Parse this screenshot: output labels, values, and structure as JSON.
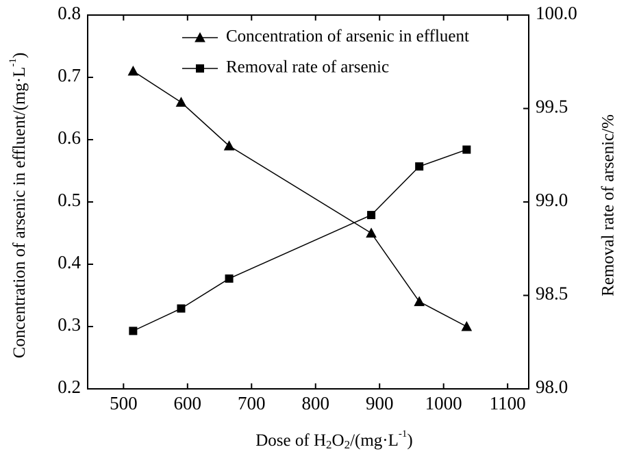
{
  "chart_data": {
    "type": "line",
    "x_label": [
      "Dose of H",
      "2",
      "O",
      "2",
      "/(mg·L",
      "-1",
      ")"
    ],
    "y_label": [
      "Concentration of arsenic in effluent/(mg·L",
      "-1",
      ")"
    ],
    "y2_label": "Removal rate of arsenic/%",
    "x": [
      515,
      590,
      665,
      887,
      962,
      1036
    ],
    "series": [
      {
        "name": "Concentration of arsenic in effluent",
        "marker": "triangle",
        "color": "#000000",
        "values": [
          0.71,
          0.66,
          0.59,
          0.45,
          0.34,
          0.3
        ]
      },
      {
        "name": "Removal rate of arsenic",
        "marker": "square",
        "color": "#000000",
        "axis": "y2",
        "values": [
          98.31,
          98.43,
          98.59,
          98.93,
          99.19,
          99.28
        ]
      }
    ],
    "xlim": [
      444,
      1133
    ],
    "xticks": [
      500,
      600,
      700,
      800,
      900,
      1000,
      1100
    ],
    "ylim": [
      0.2,
      0.8
    ],
    "yticks": [
      0.2,
      0.3,
      0.4,
      0.5,
      0.6,
      0.7,
      0.8
    ],
    "y2lim": [
      98.0,
      100.0
    ],
    "y2ticks": [
      {
        "value": 98.0,
        "label": "98.0"
      },
      98.5,
      {
        "value": 99.0,
        "label": "99.0"
      },
      99.5,
      {
        "value": 100.0,
        "label": "100.0"
      }
    ],
    "grid": false,
    "legend": "top-left"
  }
}
